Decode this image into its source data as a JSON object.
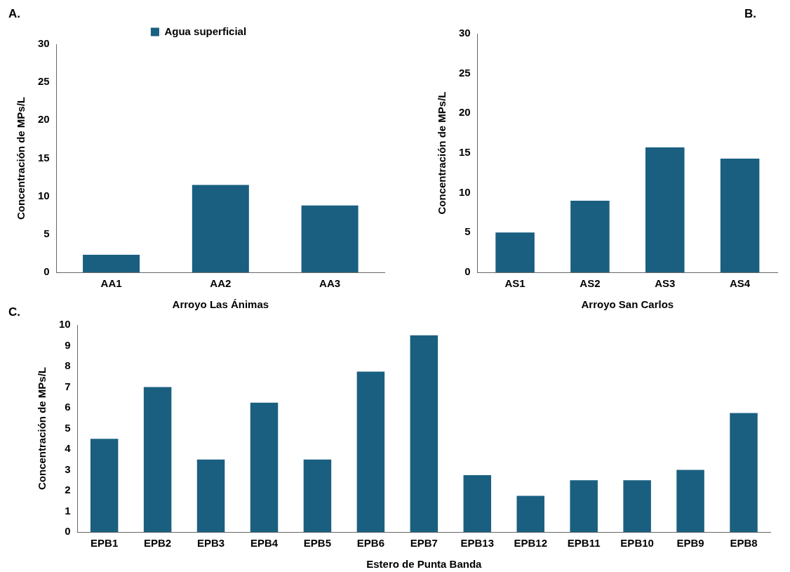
{
  "chart_data": [
    {
      "type": "bar",
      "annotations": [
        "A."
      ],
      "xlabel": "Arroyo Las Ánimas",
      "ylabel": "Concentración de MPs/L",
      "categories": [
        "AA1",
        "AA2",
        "AA3"
      ],
      "legend": "top",
      "ylim": [
        0,
        30
      ],
      "yticks": [
        0,
        5,
        10,
        15,
        20,
        25,
        30
      ],
      "series": [
        {
          "name": "Agua superficial",
          "color": "#1a5f80",
          "values": [
            2.3,
            11.5,
            8.8
          ]
        }
      ]
    },
    {
      "type": "bar",
      "annotations": [
        "B."
      ],
      "xlabel": "Arroyo San Carlos",
      "ylabel": "Concentración de MPs/L",
      "categories": [
        "AS1",
        "AS2",
        "AS3",
        "AS4"
      ],
      "ylim": [
        0,
        30
      ],
      "yticks": [
        0,
        5,
        10,
        15,
        20,
        25,
        30
      ],
      "series": [
        {
          "color": "#1a5f80",
          "values": [
            5,
            9,
            15.7,
            14.3
          ]
        }
      ]
    },
    {
      "type": "bar",
      "annotations": [
        "C."
      ],
      "xlabel": "Estero de Punta Banda",
      "ylabel": "Concentración de MPs/L",
      "categories": [
        "EPB1",
        "EPB2",
        "EPB3",
        "EPB4",
        "EPB5",
        "EPB6",
        "EPB7",
        "EPB13",
        "EPB12",
        "EPB11",
        "EPB10",
        "EPB9",
        "EPB8"
      ],
      "ylim": [
        0,
        10
      ],
      "yticks": [
        0,
        1,
        2,
        3,
        4,
        5,
        6,
        7,
        8,
        9,
        10
      ],
      "series": [
        {
          "color": "#1a5f80",
          "values": [
            4.5,
            7,
            3.5,
            6.25,
            3.5,
            7.75,
            9.5,
            2.75,
            1.75,
            2.5,
            2.5,
            3,
            5.75
          ]
        }
      ]
    }
  ]
}
